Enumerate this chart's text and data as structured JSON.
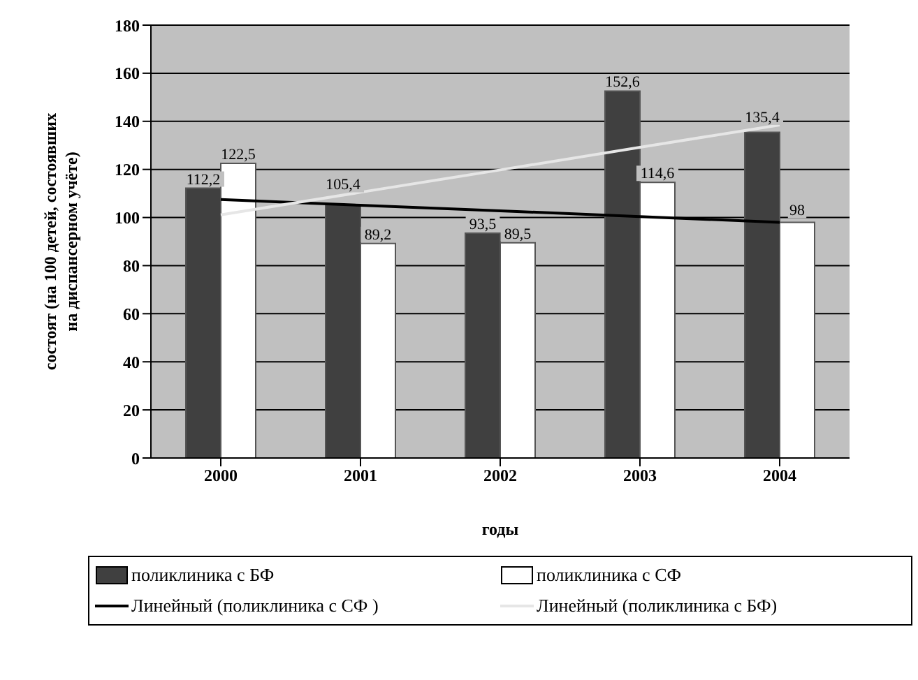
{
  "chart_data": {
    "type": "bar",
    "xlabel": "годы",
    "ylabel": "состоят (на 100 детей, состоявших на диспансерном учёте)",
    "categories": [
      "2000",
      "2001",
      "2002",
      "2003",
      "2004"
    ],
    "series": [
      {
        "name": "поликлиника с БФ",
        "color": "#404040",
        "values": [
          112.2,
          105.4,
          93.5,
          152.6,
          135.4
        ],
        "value_labels": [
          "112,2",
          "105,4",
          "93,5",
          "152,6",
          "135,4"
        ]
      },
      {
        "name": "поликлиника с СФ",
        "color": "#ffffff",
        "values": [
          122.5,
          89.2,
          89.5,
          114.6,
          98
        ],
        "value_labels": [
          "122,5",
          "89,2",
          "89,5",
          "114,6",
          "98"
        ]
      },
      {
        "name": "Линейный (поликлиника с СФ )",
        "type": "line",
        "color": "#000000",
        "values": [
          107.5,
          105.1,
          102.8,
          100.4,
          98.0
        ]
      },
      {
        "name": "Линейный (поликлиника с БФ)",
        "type": "line",
        "color": "#e6e6e6",
        "values": [
          101.1,
          110.5,
          119.8,
          129.2,
          138.5
        ]
      }
    ],
    "ylim": [
      0,
      180
    ],
    "yticks": [
      0,
      20,
      40,
      60,
      80,
      100,
      120,
      140,
      160,
      180
    ],
    "grid": "y",
    "legend": "bottom",
    "marker": "none",
    "line_style": "solid"
  }
}
